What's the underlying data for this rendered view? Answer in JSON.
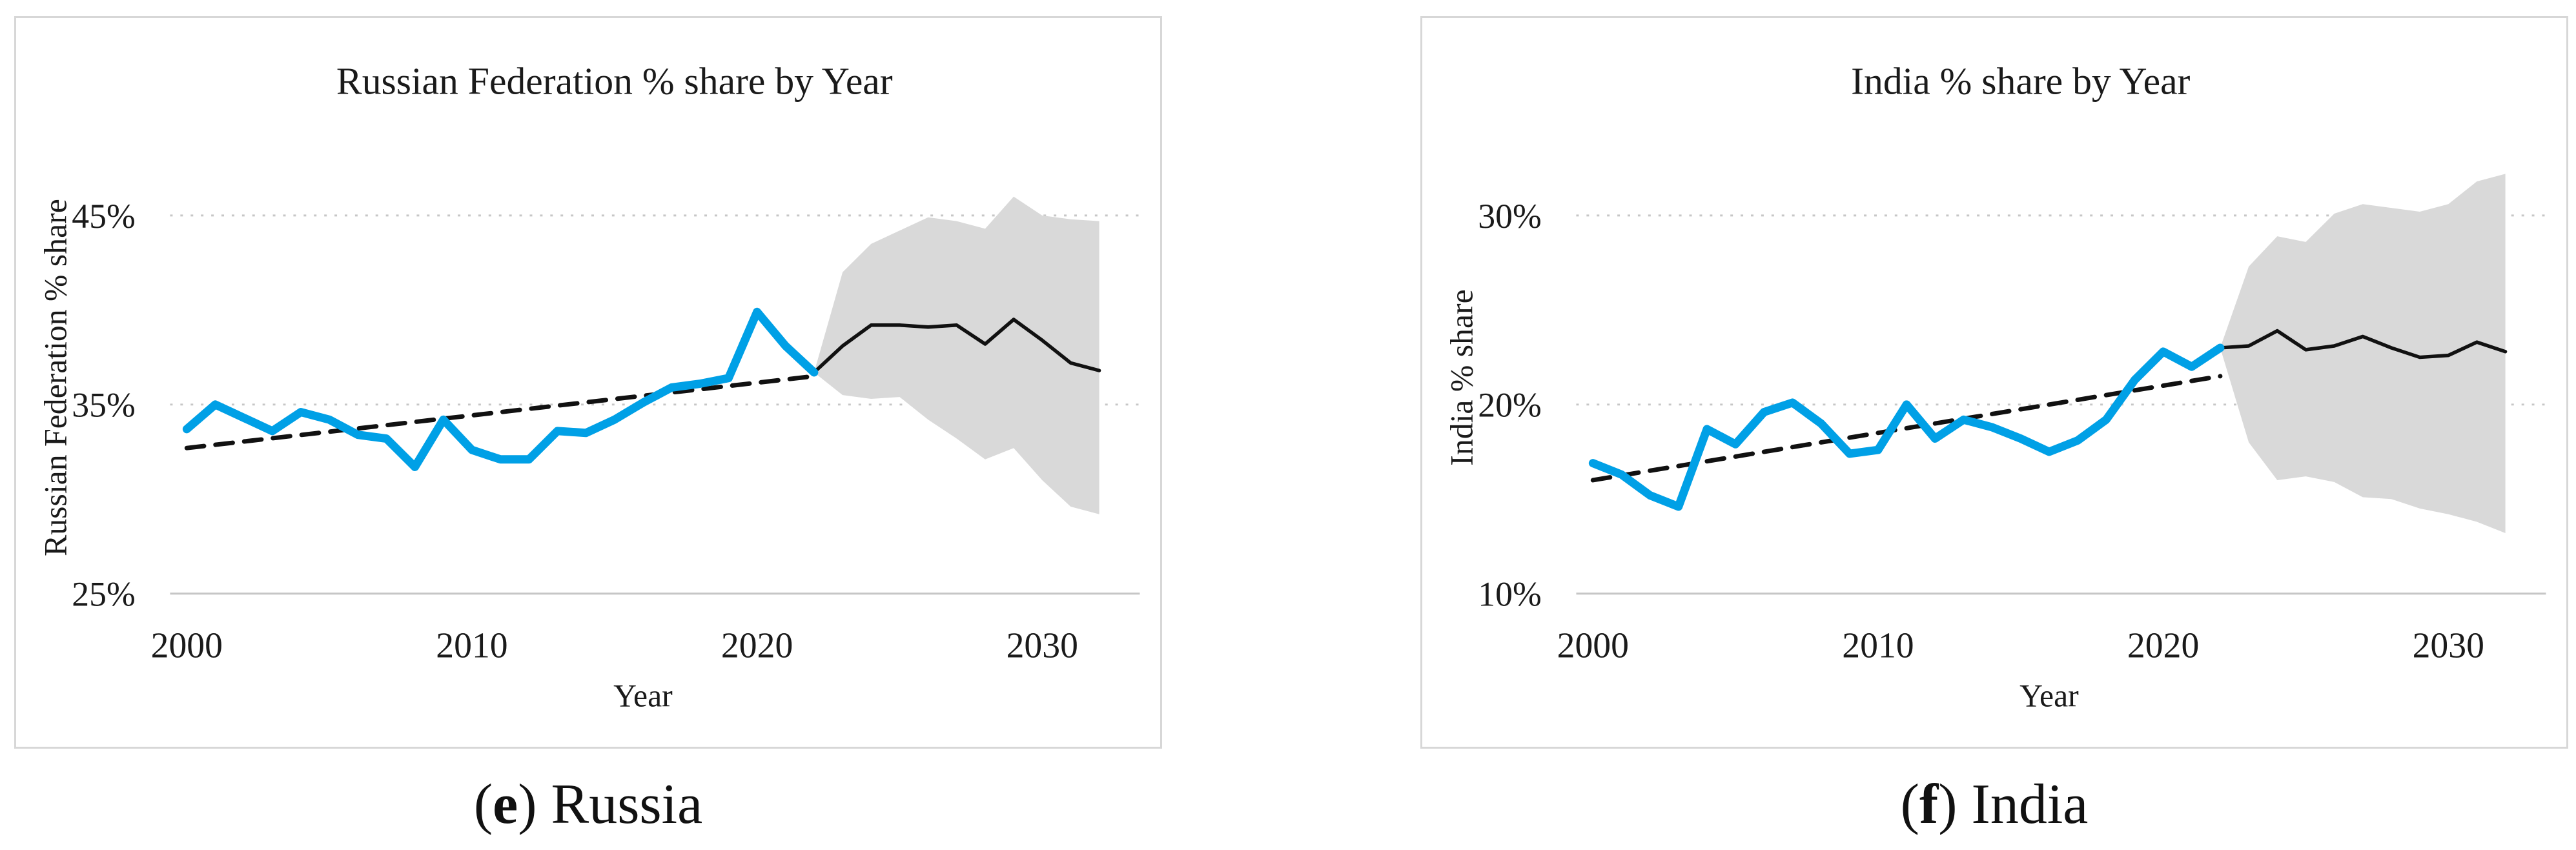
{
  "page": {
    "background": "#ffffff",
    "text_color": "#1a1a1a",
    "panel_border_color": "#d7d7d7"
  },
  "figure": {
    "captions": [
      {
        "open": "(",
        "letter": "e",
        "rest": ") Russia"
      },
      {
        "open": "(",
        "letter": "f",
        "rest": ") India"
      }
    ]
  },
  "chart_data": [
    {
      "type": "line",
      "title": "Russian Federation % share by Year",
      "xlabel": "Year",
      "ylabel": "Russian Federation % share",
      "caption": "(e) Russia",
      "xlim": [
        1998.5,
        2033.5
      ],
      "ylim": [
        25,
        47.5
      ],
      "grid": "horizontal-only",
      "legend_position": "none",
      "x_ticks": [
        2000,
        2010,
        2020,
        2030
      ],
      "y_ticks": [
        {
          "value": 45,
          "label": "45%",
          "style": "dotted"
        },
        {
          "value": 35,
          "label": "35%",
          "style": "dotted"
        },
        {
          "value": 25,
          "label": "25%",
          "style": "solid"
        }
      ],
      "colors": {
        "historical": "#00A0E6",
        "trend": "#111111",
        "forecast": "#111111",
        "band": "#D9D9D9",
        "grid": "#c6c6c6"
      },
      "series": [
        {
          "name": "confidence-band",
          "type": "band",
          "years": [
            2022,
            2023,
            2024,
            2025,
            2026,
            2027,
            2028,
            2029,
            2030,
            2031,
            2032
          ],
          "upper": [
            36.7,
            42.0,
            43.5,
            44.2,
            44.9,
            44.7,
            44.3,
            46.0,
            45.0,
            44.8,
            44.7
          ],
          "lower": [
            36.7,
            35.5,
            35.3,
            35.4,
            34.2,
            33.2,
            32.1,
            32.7,
            31.0,
            29.6,
            29.2
          ]
        },
        {
          "name": "trend",
          "type": "dashed-line",
          "years": [
            2000,
            2022
          ],
          "values": [
            32.7,
            36.5
          ]
        },
        {
          "name": "forecast",
          "type": "line",
          "role": "forecast",
          "years": [
            2022,
            2023,
            2024,
            2025,
            2026,
            2027,
            2028,
            2029,
            2030,
            2031,
            2032
          ],
          "values": [
            36.7,
            38.1,
            39.2,
            39.2,
            39.1,
            39.2,
            38.2,
            39.5,
            38.4,
            37.2,
            36.8
          ]
        },
        {
          "name": "historical",
          "type": "line",
          "role": "historical",
          "years": [
            2000,
            2001,
            2002,
            2003,
            2004,
            2005,
            2006,
            2007,
            2008,
            2009,
            2010,
            2011,
            2012,
            2013,
            2014,
            2015,
            2016,
            2017,
            2018,
            2019,
            2020,
            2021,
            2022
          ],
          "values": [
            33.7,
            35.0,
            34.3,
            33.6,
            34.6,
            34.2,
            33.4,
            33.2,
            31.7,
            34.2,
            32.6,
            32.1,
            32.1,
            33.6,
            33.5,
            34.2,
            35.1,
            35.9,
            36.1,
            36.4,
            39.9,
            38.1,
            36.7
          ]
        }
      ]
    },
    {
      "type": "line",
      "title": "India % share by Year",
      "xlabel": "Year",
      "ylabel": "India % share",
      "caption": "(f) India",
      "xlim": [
        1998.5,
        2033.5
      ],
      "ylim": [
        10,
        33
      ],
      "grid": "horizontal-only",
      "legend_position": "none",
      "x_ticks": [
        2000,
        2010,
        2020,
        2030
      ],
      "y_ticks": [
        {
          "value": 30,
          "label": "30%",
          "style": "dotted"
        },
        {
          "value": 20,
          "label": "20%",
          "style": "dotted"
        },
        {
          "value": 10,
          "label": "10%",
          "style": "solid"
        }
      ],
      "colors": {
        "historical": "#00A0E6",
        "trend": "#111111",
        "forecast": "#111111",
        "band": "#D9D9D9",
        "grid": "#c6c6c6"
      },
      "series": [
        {
          "name": "confidence-band",
          "type": "band",
          "years": [
            2022,
            2023,
            2024,
            2025,
            2026,
            2027,
            2028,
            2029,
            2030,
            2031,
            2032
          ],
          "upper": [
            23.0,
            27.3,
            28.9,
            28.6,
            30.1,
            30.6,
            30.4,
            30.2,
            30.6,
            31.8,
            32.2
          ],
          "lower": [
            23.0,
            18.0,
            16.0,
            16.2,
            15.9,
            15.1,
            15.0,
            14.5,
            14.2,
            13.8,
            13.2
          ]
        },
        {
          "name": "trend",
          "type": "dashed-line",
          "years": [
            2000,
            2022
          ],
          "values": [
            16.0,
            21.5
          ]
        },
        {
          "name": "forecast",
          "type": "line",
          "role": "forecast",
          "years": [
            2022,
            2023,
            2024,
            2025,
            2026,
            2027,
            2028,
            2029,
            2030,
            2031,
            2032
          ],
          "values": [
            23.0,
            23.1,
            23.9,
            22.9,
            23.1,
            23.6,
            23.0,
            22.5,
            22.6,
            23.3,
            22.8
          ]
        },
        {
          "name": "historical",
          "type": "line",
          "role": "historical",
          "years": [
            2000,
            2001,
            2002,
            2003,
            2004,
            2005,
            2006,
            2007,
            2008,
            2009,
            2010,
            2011,
            2012,
            2013,
            2014,
            2015,
            2016,
            2017,
            2018,
            2019,
            2020,
            2021,
            2022
          ],
          "values": [
            16.9,
            16.3,
            15.2,
            14.6,
            18.7,
            17.9,
            19.6,
            20.1,
            19.0,
            17.4,
            17.6,
            20.0,
            18.2,
            19.2,
            18.8,
            18.2,
            17.5,
            18.1,
            19.2,
            21.3,
            22.8,
            22.0,
            23.0
          ]
        }
      ]
    }
  ]
}
